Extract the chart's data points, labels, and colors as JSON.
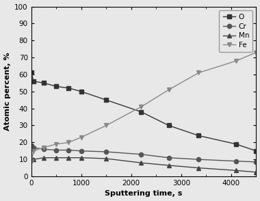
{
  "title": "",
  "xlabel": "Sputtering time, s",
  "ylabel": "Atomic percent, %",
  "xlim": [
    0,
    4500
  ],
  "ylim": [
    0,
    100
  ],
  "xticks": [
    0,
    1000,
    2000,
    3000,
    4000
  ],
  "yticks": [
    0,
    10,
    20,
    30,
    40,
    50,
    60,
    70,
    80,
    90,
    100
  ],
  "series": {
    "O": {
      "x": [
        0,
        50,
        250,
        500,
        750,
        1000,
        1500,
        2200,
        2750,
        3350,
        4100,
        4500
      ],
      "y": [
        61,
        56,
        55,
        53,
        52,
        50,
        45,
        38,
        30,
        24,
        19,
        15
      ],
      "color": "#444444",
      "marker": "s",
      "markersize": 4.5,
      "label": "O"
    },
    "Cr": {
      "x": [
        0,
        50,
        250,
        500,
        750,
        1000,
        1500,
        2200,
        2750,
        3350,
        4100,
        4500
      ],
      "y": [
        18,
        17,
        16,
        15.5,
        15.5,
        15,
        14.5,
        13,
        11,
        10,
        9,
        8.5
      ],
      "color": "#444444",
      "marker": "o",
      "markersize": 4.5,
      "label": "Cr"
    },
    "Mn": {
      "x": [
        0,
        50,
        250,
        500,
        750,
        1000,
        1500,
        2200,
        2750,
        3350,
        4100,
        4500
      ],
      "y": [
        10,
        10,
        11,
        11,
        11,
        11,
        10.5,
        8,
        6.5,
        5,
        3.5,
        2.5
      ],
      "color": "#444444",
      "marker": "^",
      "markersize": 4.5,
      "label": "Mn"
    },
    "Fe": {
      "x": [
        0,
        50,
        250,
        500,
        750,
        1000,
        1500,
        2200,
        2750,
        3350,
        4100,
        4500
      ],
      "y": [
        9,
        15,
        17,
        19,
        20,
        23,
        30,
        41,
        51,
        61,
        68,
        73
      ],
      "color": "#888888",
      "marker": "v",
      "markersize": 4.5,
      "label": "Fe"
    }
  },
  "legend_loc": "upper right",
  "background_color": "#f0f0f0",
  "linewidth": 1.0
}
